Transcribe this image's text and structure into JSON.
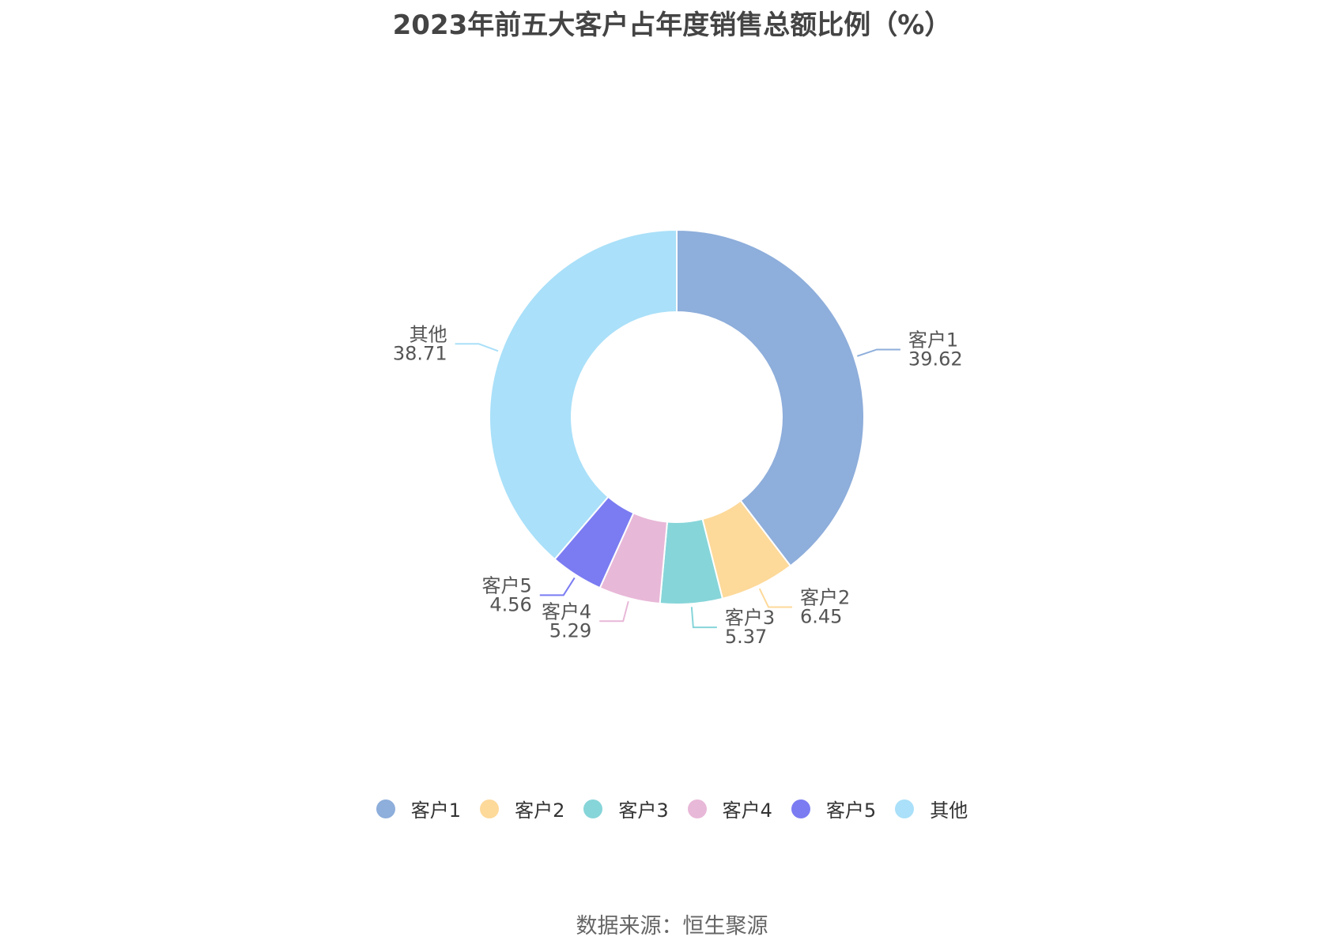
{
  "chart_data": {
    "type": "pie",
    "donut": true,
    "title": "2023年前五大客户占年度销售总额比例（%）",
    "categories": [
      "客户1",
      "客户2",
      "客户3",
      "客户4",
      "客户5",
      "其他"
    ],
    "values": [
      39.62,
      6.45,
      5.37,
      5.29,
      4.56,
      38.71
    ],
    "value_labels": [
      "39.62",
      "6.45",
      "5.37",
      "5.29",
      "4.56",
      "38.71"
    ],
    "colors": [
      "#8eaedb",
      "#fdd99a",
      "#86d5d9",
      "#e8b8d8",
      "#7b7cf2",
      "#aae0f9"
    ],
    "legend_position": "bottom"
  },
  "source_note": "数据来源：恒生聚源"
}
